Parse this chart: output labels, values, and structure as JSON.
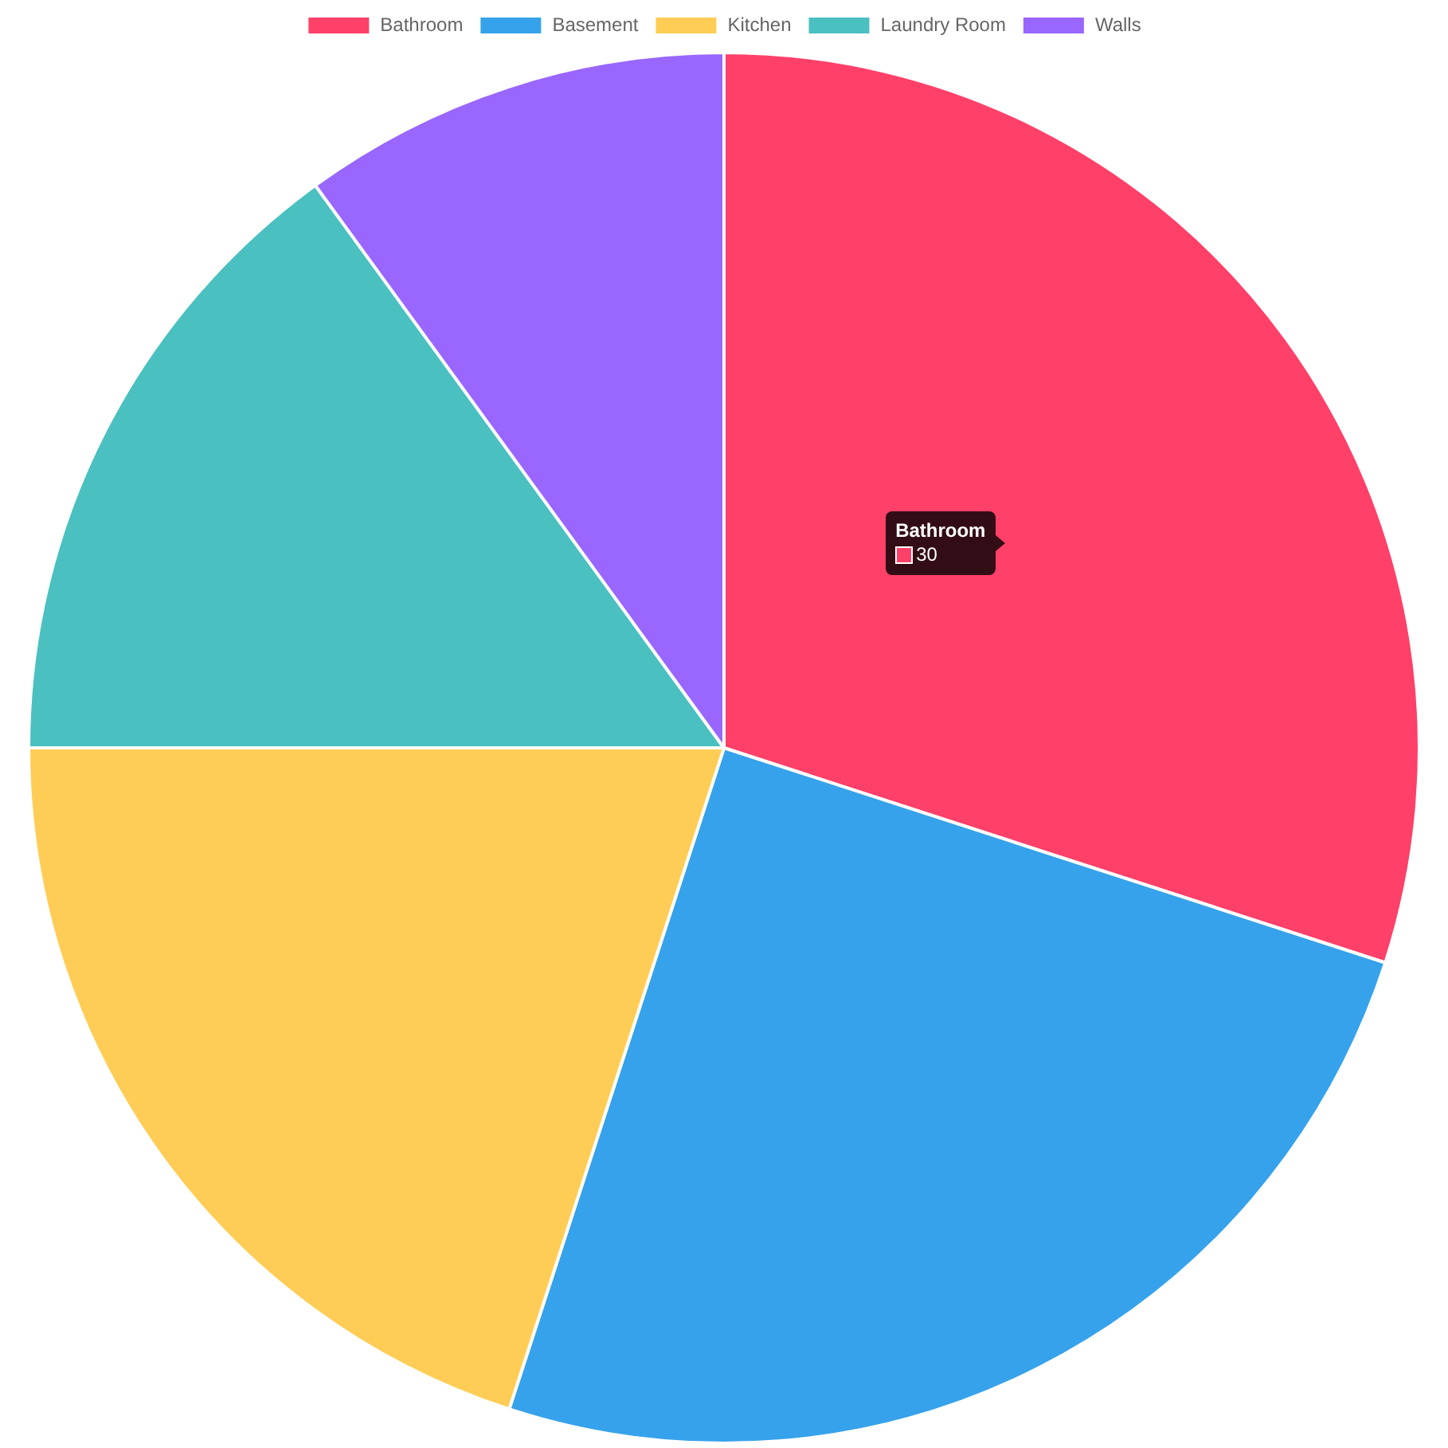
{
  "chart_data": {
    "type": "pie",
    "categories": [
      "Bathroom",
      "Basement",
      "Kitchen",
      "Laundry Room",
      "Walls"
    ],
    "values": [
      30,
      25,
      20,
      15,
      10
    ],
    "colors": [
      "#ff4069",
      "#36a2eb",
      "#ffcd56",
      "#4bc0c0",
      "#9966ff"
    ],
    "value_labels": [
      "30",
      null,
      null,
      null,
      null
    ],
    "legend": "top"
  }
}
